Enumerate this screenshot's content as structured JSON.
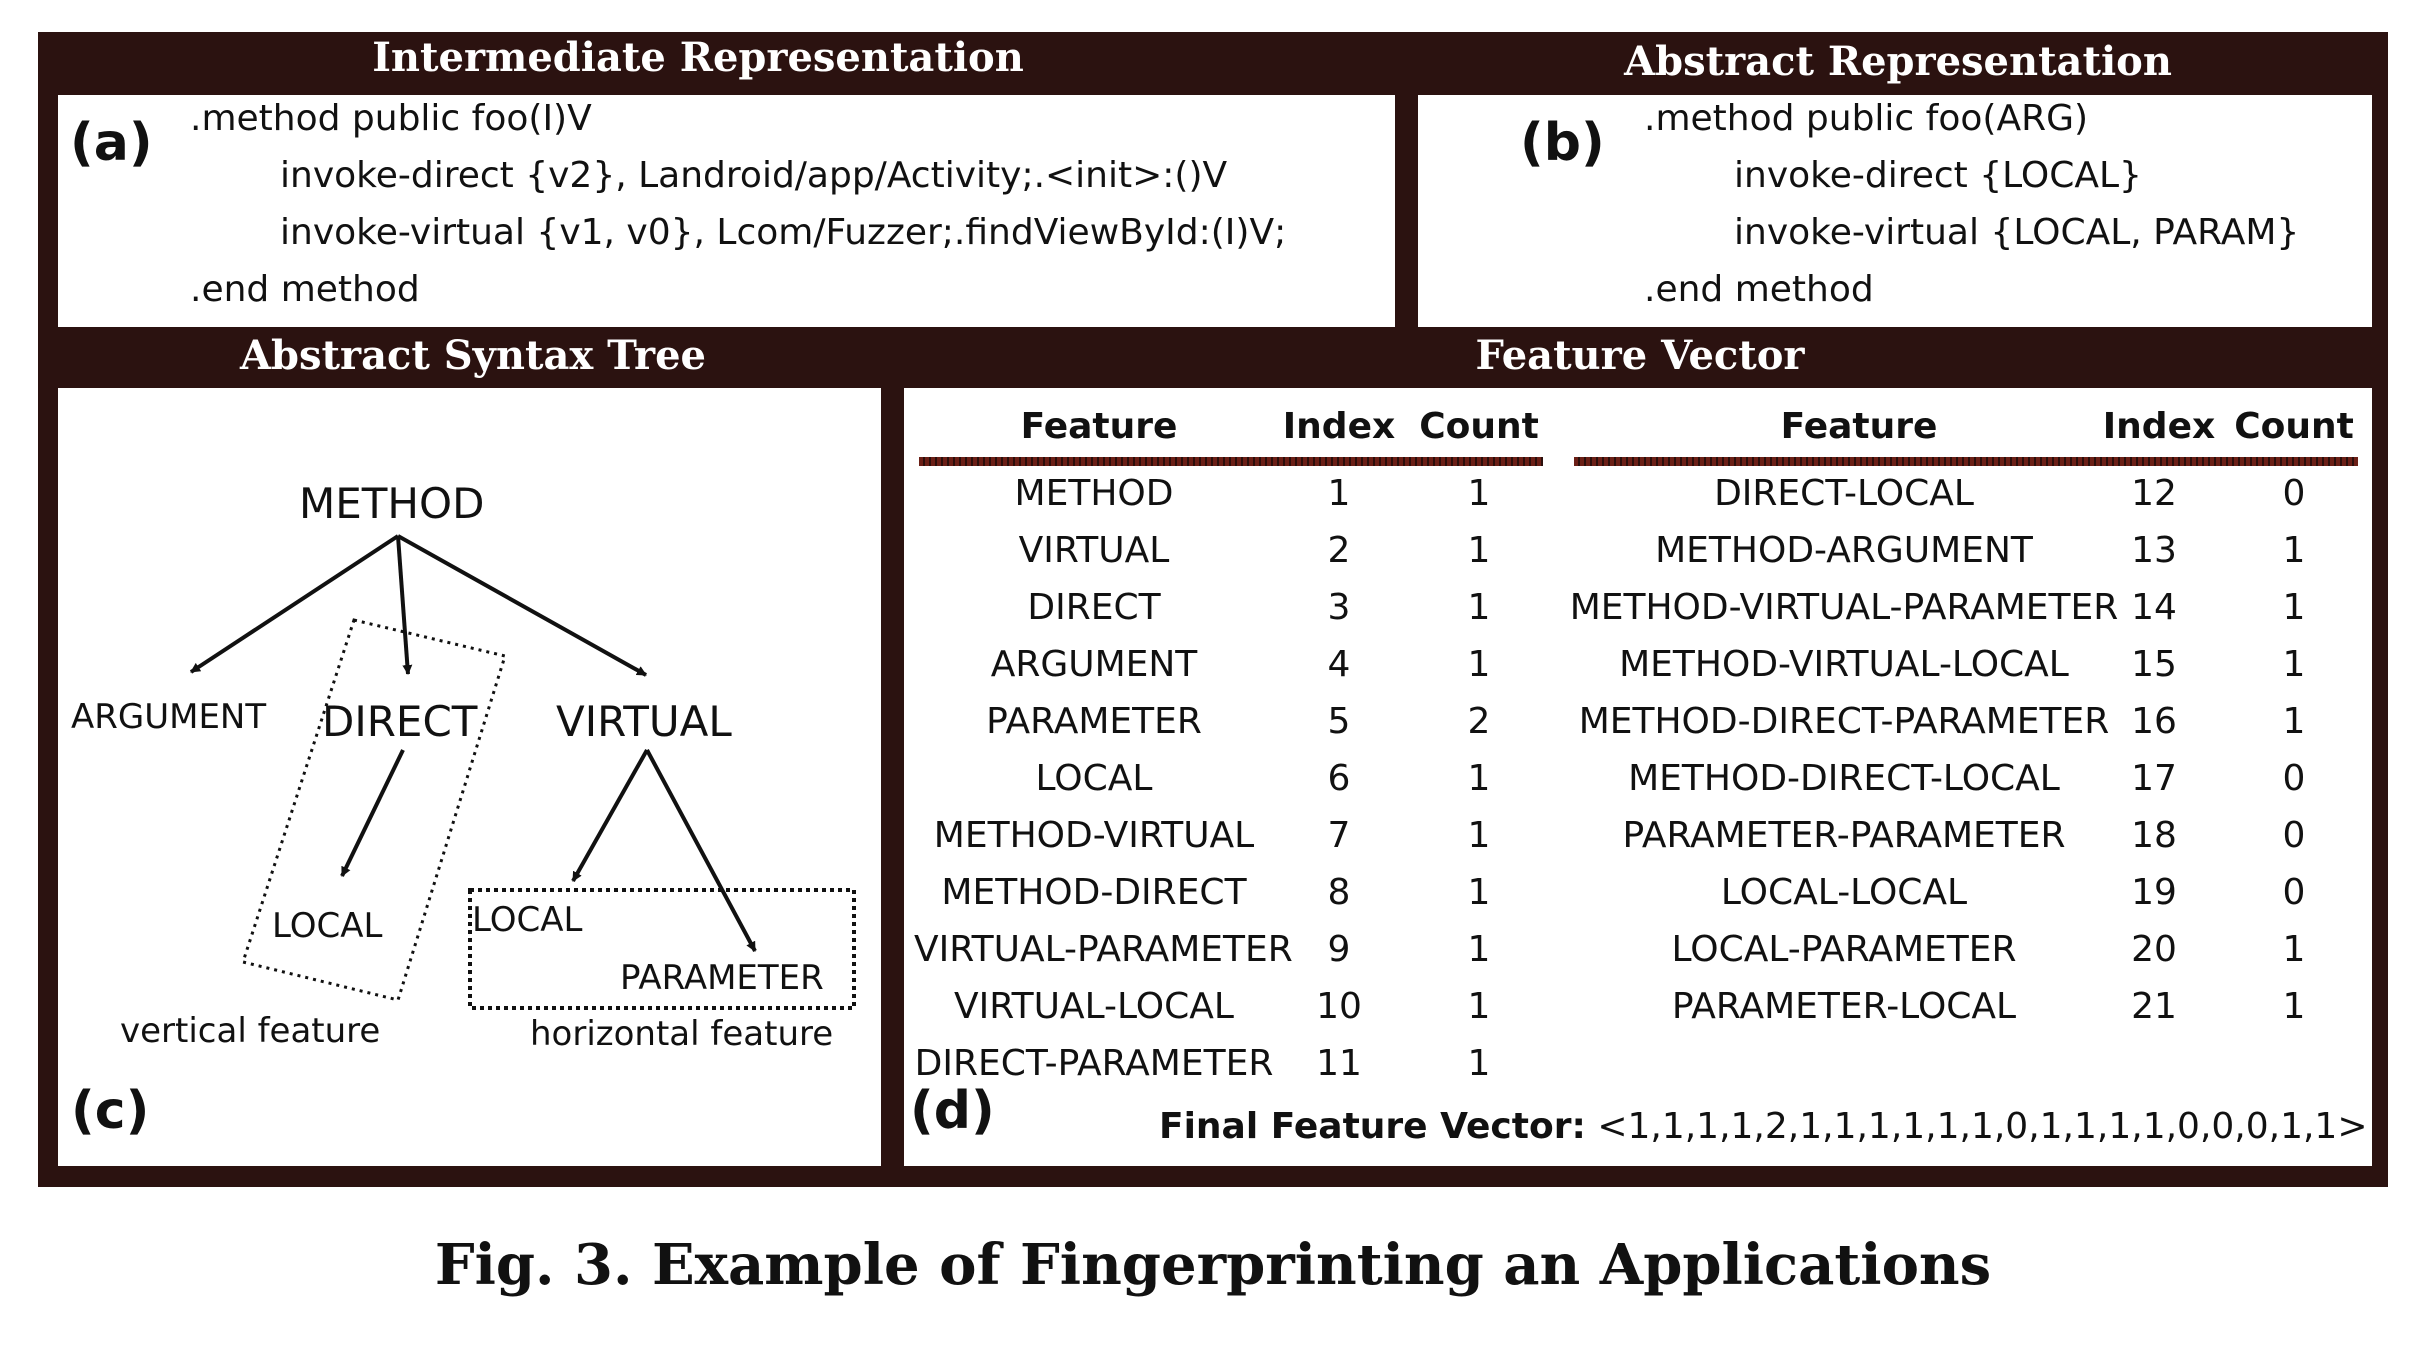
{
  "panels": {
    "a": {
      "header": "Intermediate Representation",
      "label": "(a)",
      "lines": [
        ".method public foo(I)V",
        "invoke-direct {v2}, Landroid/app/Activity;.<init>:()V",
        "invoke-virtual {v1, v0}, Lcom/Fuzzer;.findViewById:(I)V;",
        ".end method"
      ]
    },
    "b": {
      "header": "Abstract Representation",
      "label": "(b)",
      "lines": [
        ".method public foo(ARG)",
        "invoke-direct {LOCAL}",
        "invoke-virtual {LOCAL, PARAM}",
        ".end method"
      ]
    },
    "c": {
      "header": "Abstract Syntax Tree",
      "label": "(c)",
      "nodes": {
        "method": "METHOD",
        "argument": "ARGUMENT",
        "direct": "DIRECT",
        "virtual": "VIRTUAL",
        "local_vertical": "LOCAL",
        "local_horizontal": "LOCAL",
        "parameter": "PARAMETER"
      },
      "vertical_caption": "vertical feature",
      "horizontal_caption": "horizontal feature"
    },
    "d": {
      "header": "Feature Vector",
      "label": "(d)",
      "columns": {
        "feature": "Feature",
        "index": "Index",
        "count": "Count"
      },
      "left_rows": [
        {
          "feature": "METHOD",
          "index": "1",
          "count": "1"
        },
        {
          "feature": "VIRTUAL",
          "index": "2",
          "count": "1"
        },
        {
          "feature": "DIRECT",
          "index": "3",
          "count": "1"
        },
        {
          "feature": "ARGUMENT",
          "index": "4",
          "count": "1"
        },
        {
          "feature": "PARAMETER",
          "index": "5",
          "count": "2"
        },
        {
          "feature": "LOCAL",
          "index": "6",
          "count": "1"
        },
        {
          "feature": "METHOD-VIRTUAL",
          "index": "7",
          "count": "1"
        },
        {
          "feature": "METHOD-DIRECT",
          "index": "8",
          "count": "1"
        },
        {
          "feature": "VIRTUAL-PARAMETER",
          "index": "9",
          "count": "1"
        },
        {
          "feature": "VIRTUAL-LOCAL",
          "index": "10",
          "count": "1"
        },
        {
          "feature": "DIRECT-PARAMETER",
          "index": "11",
          "count": "1"
        }
      ],
      "right_rows": [
        {
          "feature": "DIRECT-LOCAL",
          "index": "12",
          "count": "0"
        },
        {
          "feature": "METHOD-ARGUMENT",
          "index": "13",
          "count": "1"
        },
        {
          "feature": "METHOD-VIRTUAL-PARAMETER",
          "index": "14",
          "count": "1"
        },
        {
          "feature": "METHOD-VIRTUAL-LOCAL",
          "index": "15",
          "count": "1"
        },
        {
          "feature": "METHOD-DIRECT-PARAMETER",
          "index": "16",
          "count": "1"
        },
        {
          "feature": "METHOD-DIRECT-LOCAL",
          "index": "17",
          "count": "0"
        },
        {
          "feature": "PARAMETER-PARAMETER",
          "index": "18",
          "count": "0"
        },
        {
          "feature": "LOCAL-LOCAL",
          "index": "19",
          "count": "0"
        },
        {
          "feature": "LOCAL-PARAMETER",
          "index": "20",
          "count": "1"
        },
        {
          "feature": "PARAMETER-LOCAL",
          "index": "21",
          "count": "1"
        }
      ],
      "final_label": "Final Feature Vector:",
      "final_value": "<1,1,1,1,2,1,1,1,1,1,1,0,1,1,1,1,0,0,0,1,1>"
    }
  },
  "caption": "Fig. 3. Example of Fingerprinting an Applications",
  "colors": {
    "frame": "#2b1210",
    "rule": "#6b1f16",
    "text": "#111111",
    "panel": "#ffffff"
  }
}
